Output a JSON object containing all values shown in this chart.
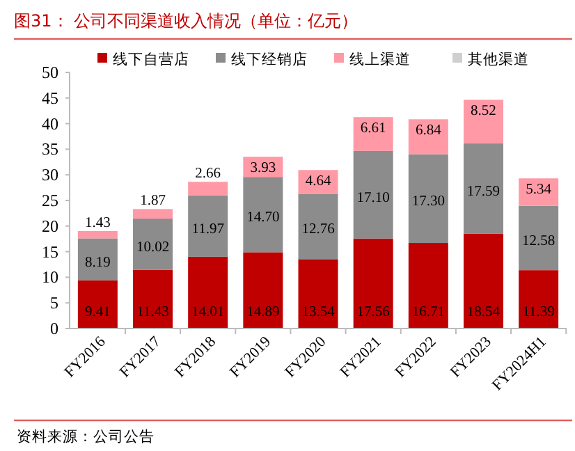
{
  "chart_data": {
    "type": "bar",
    "stacked": true,
    "title": "图31：  公司不同渠道收入情况（单位：亿元）",
    "categories": [
      "FY2016",
      "FY2017",
      "FY2018",
      "FY2019",
      "FY2020",
      "FY2021",
      "FY2022",
      "FY2023",
      "FY2024H1"
    ],
    "series": [
      {
        "name": "线下自营店",
        "color": "#c00000",
        "values": [
          9.41,
          11.43,
          14.01,
          14.89,
          13.54,
          17.56,
          16.71,
          18.54,
          11.39
        ],
        "value_labels": [
          "9.41",
          "11.43",
          "14.01",
          "14.89",
          "13.54",
          "17.56",
          "16.71",
          "18.54",
          "11.39"
        ]
      },
      {
        "name": "线下经销店",
        "color": "#8c8c8c",
        "values": [
          8.19,
          10.02,
          11.97,
          14.7,
          12.76,
          17.1,
          17.3,
          17.59,
          12.58
        ],
        "value_labels": [
          "8.19",
          "10.02",
          "11.97",
          "14.70",
          "12.76",
          "17.10",
          "17.30",
          "17.59",
          "12.58"
        ]
      },
      {
        "name": "线上渠道",
        "color": "#ff99a6",
        "values": [
          1.43,
          1.87,
          2.66,
          3.93,
          4.64,
          6.61,
          6.84,
          8.52,
          5.34
        ],
        "value_labels": [
          "1.43",
          "1.87",
          "2.66",
          "3.93",
          "4.64",
          "6.61",
          "6.84",
          "8.52",
          "5.34"
        ]
      },
      {
        "name": "其他渠道",
        "color": "#cfcfcf",
        "values": [
          null,
          null,
          null,
          null,
          null,
          null,
          null,
          null,
          null
        ]
      }
    ],
    "ylim": [
      0,
      50
    ],
    "yticks": [
      0,
      5,
      10,
      15,
      20,
      25,
      30,
      35,
      40,
      45,
      50
    ],
    "grid": false,
    "legend": "top",
    "annotations": [
      "资料来源：公司公告"
    ]
  }
}
